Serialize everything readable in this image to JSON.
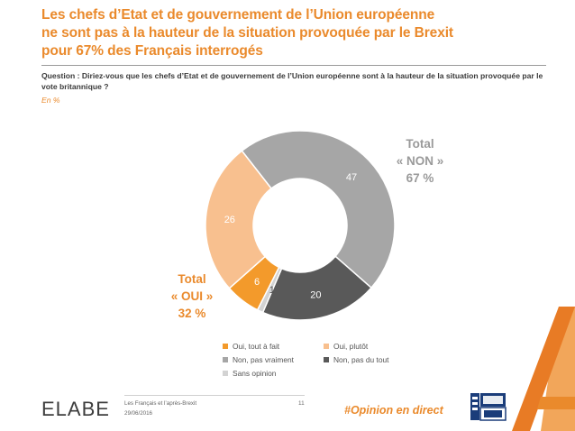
{
  "title": {
    "line1": "Les chefs d’Etat et de gouvernement de l’Union européenne",
    "line2": "ne sont pas à la hauteur de la situation provoquée par le Brexit",
    "line3": "pour 67% des Français interrogés"
  },
  "question": "Question : Diriez-vous que les chefs d’Etat et de gouvernement de l’Union européenne sont à la hauteur de la situation provoquée par le vote britannique ?",
  "unit": "En %",
  "totals": {
    "non": {
      "line1": "Total",
      "line2": "« NON »",
      "line3": "67 %"
    },
    "oui": {
      "line1": "Total",
      "line2": "« OUI »",
      "line3": "32 %"
    }
  },
  "chart_data": {
    "type": "pie",
    "variant": "donut",
    "categories": [
      "Oui, tout à fait",
      "Oui, plutôt",
      "Non, pas vraiment",
      "Non, pas du tout",
      "Sans opinion"
    ],
    "values": [
      6,
      26,
      47,
      20,
      1
    ],
    "colors": [
      "#f39a2b",
      "#f8c08f",
      "#a6a6a6",
      "#595959",
      "#d3d3d3"
    ],
    "labels": [
      "6",
      "26",
      "47",
      "20",
      "1"
    ],
    "legend_position": "bottom"
  },
  "footer": {
    "logo": "ELABE",
    "study": "Les Français et l’après-Brexit",
    "date": "29/06/2016",
    "page": "11",
    "hashtag": "#Opinion en direct"
  },
  "brand": {
    "accent": "#ea8a2c",
    "bfm_logo": "bfm-tv-logo"
  }
}
